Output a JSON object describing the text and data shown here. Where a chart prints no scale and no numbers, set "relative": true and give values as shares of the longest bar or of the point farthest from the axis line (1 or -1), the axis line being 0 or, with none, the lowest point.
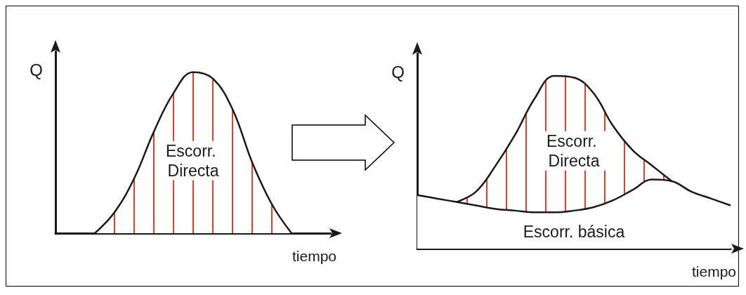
{
  "chart_data": [
    {
      "type": "area",
      "relative": true,
      "ylabel": "Q",
      "xlabel": "tiempo",
      "categories": [
        null,
        null,
        null,
        null,
        null,
        null,
        null,
        null,
        null,
        null,
        null,
        null,
        null,
        null,
        null
      ],
      "series": [
        {
          "name": "Escorr. Directa",
          "color": "#d9412b",
          "values": [
            null,
            null,
            0,
            0.13,
            0.34,
            0.63,
            0.87,
            1,
            0.96,
            0.77,
            0.44,
            0.18,
            0,
            null,
            null
          ]
        }
      ]
    },
    {
      "type": "area",
      "relative": true,
      "stacked": true,
      "ylabel": "Q",
      "xlabel": "tiempo",
      "categories": [
        null,
        null,
        null,
        null,
        null,
        null,
        null,
        null,
        null,
        null,
        null,
        null,
        null,
        null,
        null,
        null,
        null
      ],
      "series": [
        {
          "name": "Escorr. básica",
          "type": "area",
          "color": "#1a1a1a",
          "values": [
            0.31,
            0.29,
            0.27,
            0.25,
            0.23,
            0.22,
            0.21,
            0.21,
            0.22,
            0.24,
            0.28,
            0.34,
            0.4,
            0.39,
            0.33,
            0.29,
            0.25
          ]
        },
        {
          "name": "Escorr. Directa",
          "type": "area",
          "color": "#d9412b",
          "values": [
            null,
            null,
            0,
            0.08,
            0.25,
            0.44,
            0.66,
            0.79,
            0.77,
            0.66,
            0.43,
            0.23,
            0.08,
            0,
            null,
            null,
            null
          ]
        }
      ]
    }
  ]
}
